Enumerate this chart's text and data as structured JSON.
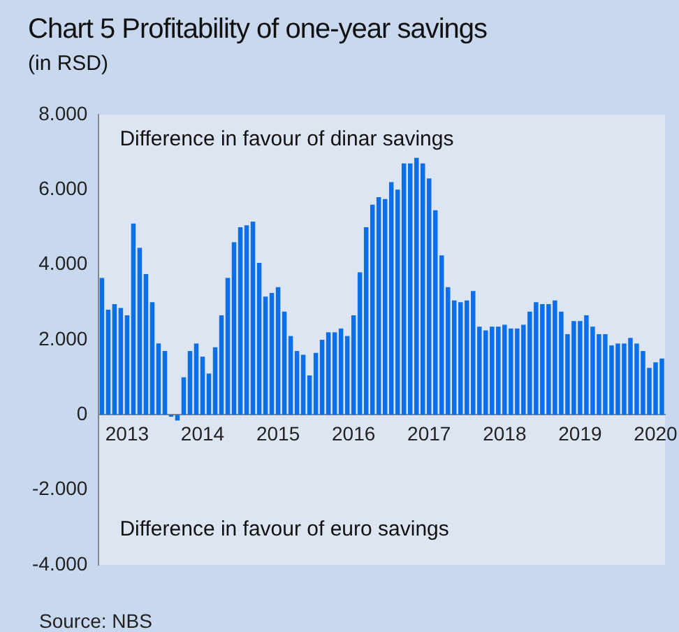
{
  "chart_data": {
    "type": "bar",
    "title": "Chart 5 Profitability of one-year savings",
    "subtitle": "(in RSD)",
    "annotations": [
      "Difference in favour of dinar savings",
      "Difference in favour of euro savings",
      "Source: NBS"
    ],
    "categories": [
      null,
      null,
      null,
      null,
      "2013",
      null,
      null,
      null,
      null,
      null,
      null,
      null,
      null,
      null,
      null,
      null,
      "2014",
      null,
      null,
      null,
      null,
      null,
      null,
      null,
      null,
      null,
      null,
      null,
      "2015",
      null,
      null,
      null,
      null,
      null,
      null,
      null,
      null,
      null,
      null,
      null,
      "2016",
      null,
      null,
      null,
      null,
      null,
      null,
      null,
      null,
      null,
      null,
      null,
      "2017",
      null,
      null,
      null,
      null,
      null,
      null,
      null,
      null,
      null,
      null,
      null,
      "2018",
      null,
      null,
      null,
      null,
      null,
      null,
      null,
      null,
      null,
      null,
      null,
      "2019",
      null,
      null,
      null,
      null,
      null,
      null,
      null,
      null,
      null,
      null,
      null,
      "2020",
      null
    ],
    "values": [
      3650,
      2800,
      2950,
      2850,
      2650,
      5100,
      4450,
      3750,
      3000,
      1900,
      1700,
      -50,
      -150,
      1000,
      1700,
      1900,
      1550,
      1100,
      1800,
      2650,
      3650,
      4600,
      5000,
      5050,
      5150,
      4050,
      3150,
      3250,
      3400,
      2750,
      2100,
      1700,
      1600,
      1050,
      1650,
      2000,
      2200,
      2200,
      2300,
      2100,
      2650,
      3800,
      5000,
      5600,
      5800,
      5750,
      6200,
      6000,
      6700,
      6700,
      6850,
      6700,
      6300,
      5450,
      4250,
      3400,
      3050,
      3000,
      3050,
      3300,
      2350,
      2250,
      2350,
      2350,
      2400,
      2300,
      2300,
      2400,
      2750,
      3000,
      2950,
      2950,
      3050,
      2750,
      2150,
      2500,
      2500,
      2650,
      2350,
      2150,
      2150,
      1850,
      1900,
      1900,
      2050,
      1900,
      1700,
      1250,
      1400,
      1500
    ],
    "color": "#0a6fe8",
    "ylim": [
      -4000,
      8000
    ],
    "yticks": [
      {
        "value": -4000,
        "label": "-4.000"
      },
      {
        "value": -2000,
        "label": "-2.000"
      },
      {
        "value": 0,
        "label": "0"
      },
      {
        "value": 2000,
        "label": "2.000"
      },
      {
        "value": 4000,
        "label": "4.000"
      },
      {
        "value": 6000,
        "label": "6.000"
      },
      {
        "value": 8000,
        "label": "8.000"
      }
    ],
    "grid": false,
    "legend": false
  }
}
